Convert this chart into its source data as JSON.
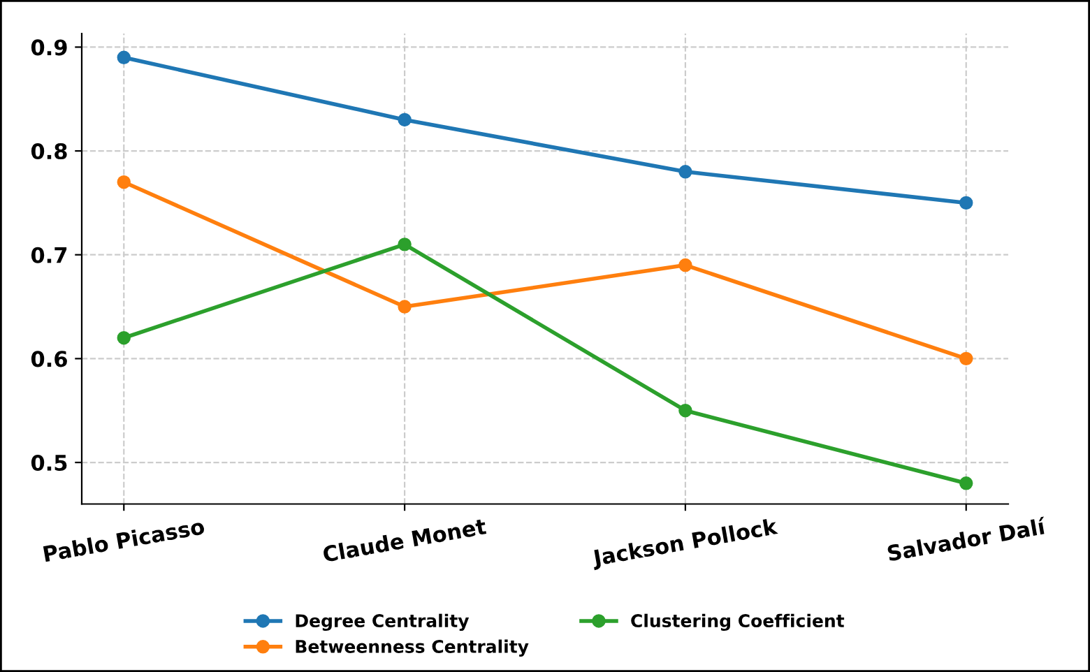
{
  "chart_data": {
    "type": "line",
    "categories": [
      "Pablo Picasso",
      "Claude Monet",
      "Jackson Pollock",
      "Salvador Dalí"
    ],
    "series": [
      {
        "name": "Degree Centrality",
        "color": "#1f77b4",
        "values": [
          0.89,
          0.83,
          0.78,
          0.75
        ]
      },
      {
        "name": "Betweenness Centrality",
        "color": "#ff7f0e",
        "values": [
          0.77,
          0.65,
          0.69,
          0.6
        ]
      },
      {
        "name": "Clustering Coefficient",
        "color": "#2ca02c",
        "values": [
          0.62,
          0.71,
          0.55,
          0.48
        ]
      }
    ],
    "ylim": [
      0.46,
      0.913
    ],
    "yticks": [
      0.5,
      0.6,
      0.7,
      0.8,
      0.9
    ],
    "grid": true,
    "legend": "bottom",
    "marker": "circle",
    "line_style": "solid"
  }
}
